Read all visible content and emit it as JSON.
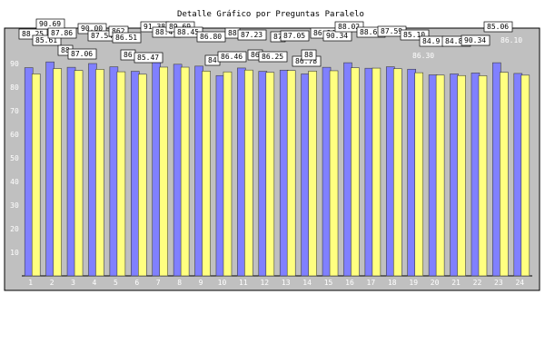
{
  "chart_data": {
    "type": "bar",
    "title": "Detalle Gráfico por Preguntas Paralelo",
    "xlabel": "",
    "ylabel": "",
    "ylim": [
      0,
      100
    ],
    "yticks": [
      10,
      20,
      30,
      40,
      50,
      60,
      70,
      80,
      90
    ],
    "grid": false,
    "legend": "none",
    "categories": [
      "1",
      "2",
      "3",
      "4",
      "5",
      "6",
      "7",
      "8",
      "9",
      "10",
      "11",
      "12",
      "13",
      "14",
      "15",
      "16",
      "17",
      "18",
      "19",
      "20",
      "21",
      "22",
      "23",
      "24"
    ],
    "series": [
      {
        "color": "#8080ff",
        "values": [
          88.25,
          90.69,
          88.4,
          90.0,
          88.6,
          86.7,
          91.38,
          89.69,
          88.9,
          84.9,
          88.1,
          86.7,
          87.2,
          85.6,
          88.4,
          90.34,
          88.0,
          88.62,
          87.59,
          85.2,
          85.6,
          86.0,
          90.34,
          85.8
        ]
      },
      {
        "color": "#ffff80",
        "values": [
          85.61,
          87.86,
          87.06,
          87.54,
          86.51,
          85.47,
          88.47,
          88.45,
          86.8,
          86.46,
          87.23,
          86.25,
          87.05,
          86.78,
          86.94,
          88.2,
          88.05,
          87.8,
          86.1,
          85.1,
          84.9,
          84.83,
          86.3,
          85.06
        ]
      }
    ],
    "data_labels": [
      {
        "text": "88.25"
      },
      {
        "text": "85.61"
      },
      {
        "text": "90.69"
      },
      {
        "text": "87.86"
      },
      {
        "text": "88"
      },
      {
        "text": "87.06"
      },
      {
        "text": "90.00"
      },
      {
        "text": "87.54"
      },
      {
        "text": "862"
      },
      {
        "text": "86.51"
      },
      {
        "text": "86"
      },
      {
        "text": "85.47"
      },
      {
        "text": "91.38"
      },
      {
        "text": "88.47"
      },
      {
        "text": "89.69"
      },
      {
        "text": "88.45"
      },
      {
        "text": "86.80"
      },
      {
        "text": "84"
      },
      {
        "text": "86.46"
      },
      {
        "text": "88"
      },
      {
        "text": "87.23"
      },
      {
        "text": "86"
      },
      {
        "text": "86.25"
      },
      {
        "text": "87"
      },
      {
        "text": "87.05"
      },
      {
        "text": "86.78"
      },
      {
        "text": "88"
      },
      {
        "text": "86.94"
      },
      {
        "text": "90.34"
      },
      {
        "text": "88.02"
      },
      {
        "text": "88.62"
      },
      {
        "text": "87.59"
      },
      {
        "text": "85.10"
      },
      {
        "text": "84.9"
      },
      {
        "text": "84.83"
      },
      {
        "text": "90.34"
      },
      {
        "text": "85.06"
      },
      {
        "text": "86.10"
      },
      {
        "text": "86.30"
      }
    ]
  }
}
